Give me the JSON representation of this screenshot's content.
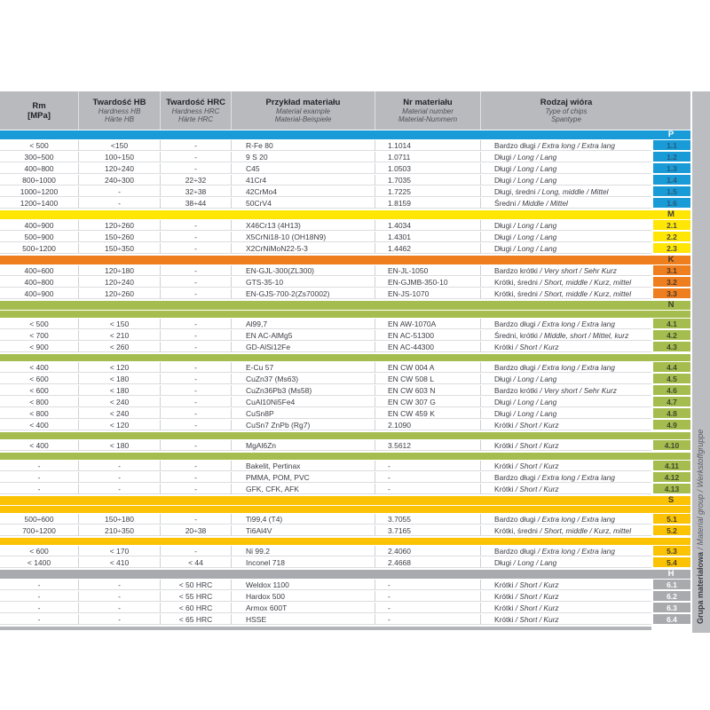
{
  "sidebar": {
    "bold": "Grupa materiałowa",
    "italic": " / Material group / Werkstoffgruppe"
  },
  "table": {
    "header_columns": [
      {
        "lines": [
          "Rm",
          "[MPa]"
        ]
      },
      {
        "lines": [
          "Twardość HB",
          "Hardness HB",
          "Härte HB"
        ]
      },
      {
        "lines": [
          "Twardość HRC",
          "Hardness HRC",
          "Härte HRC"
        ]
      },
      {
        "lines": [
          "Przykład materiału",
          "Material example",
          "Material-Beispiele"
        ]
      },
      {
        "lines": [
          "Nr materiału",
          "Material number",
          "Material-Nummern"
        ]
      },
      {
        "lines": [
          "Rodzaj wióra",
          "Type of chips",
          "Spantype"
        ]
      }
    ],
    "groups": [
      {
        "letter": "P",
        "color": "#189bd7",
        "letter_color": "#ffffff",
        "index_text_color": "#2a5a75",
        "blocks": [
          {
            "rows": [
              [
                "< 500",
                "<150",
                "-",
                "R-Fe 80",
                "1.1014",
                "Bardzo długi",
                " / Extra long / Extra lang",
                "1.1"
              ],
              [
                "300÷500",
                "100÷150",
                "-",
                "9 S 20",
                "1.0711",
                "Długi",
                " / Long / Lang",
                "1.2"
              ],
              [
                "400÷800",
                "120÷240",
                "-",
                "C45",
                "1.0503",
                "Długi",
                " / Long / Lang",
                "1.3"
              ],
              [
                "800÷1000",
                "240÷300",
                "22÷32",
                "41Cr4",
                "1.7035",
                "Długi",
                " / Long / Lang",
                "1.4"
              ],
              [
                "1000÷1200",
                "-",
                "32÷38",
                "42CrMo4",
                "1.7225",
                "Długi, średni",
                " / Long, middle / Mittel",
                "1.5"
              ],
              [
                "1200÷1400",
                "-",
                "38÷44",
                "50CrV4",
                "1.8159",
                "Średni",
                " / Middle / Mittel",
                "1.6"
              ]
            ]
          }
        ]
      },
      {
        "letter": "M",
        "color": "#ffe605",
        "letter_color": "#3f3f38",
        "index_text_color": "#4b4b44",
        "blocks": [
          {
            "rows": [
              [
                "400÷900",
                "120÷260",
                "-",
                "X46Cr13 (4H13)",
                "1.4034",
                "Długi",
                " / Long / Lang",
                "2.1"
              ],
              [
                "500÷900",
                "150÷260",
                "-",
                "X5CrNi18-10 (OH18N9)",
                "1.4301",
                "Długi",
                " / Long / Lang",
                "2.2"
              ],
              [
                "500÷1200",
                "150÷350",
                "-",
                "X2CrNiMoN22-5-3",
                "1.4462",
                "Długi",
                " / Long / Lang",
                "2.3"
              ]
            ]
          }
        ]
      },
      {
        "letter": "K",
        "color": "#ee7e1e",
        "letter_color": "#3f3428",
        "index_text_color": "#47382a",
        "blocks": [
          {
            "rows": [
              [
                "400÷600",
                "120÷180",
                "-",
                "EN-GJL-300(ZL300)",
                "EN-JL-1050",
                "Bardzo krótki",
                " / Very short / Sehr Kurz",
                "3.1"
              ],
              [
                "400÷800",
                "120÷240",
                "-",
                "GTS-35-10",
                "EN-GJMB-350-10",
                "Krótki, średni",
                " / Short, middle / Kurz, mittel",
                "3.2"
              ],
              [
                "400÷900",
                "120÷260",
                "-",
                "EN-GJS-700-2(Zs70002)",
                "EN-JS-1070",
                "Krótki, średni",
                " / Short, middle / Kurz, mittel",
                "3.3"
              ]
            ]
          }
        ]
      },
      {
        "letter": "N",
        "color": "#a5bd4f",
        "letter_color": "#3c4228",
        "index_text_color": "#43492c",
        "blocks": [
          {
            "rows": [
              [
                "< 500",
                "< 150",
                "-",
                "Al99,7",
                "EN AW-1070A",
                "Bardzo długi",
                " / Extra long / Extra lang",
                "4.1"
              ],
              [
                "< 700",
                "< 210",
                "-",
                "EN AC-AlMg5",
                "EN AC-51300",
                "Średni, krótki",
                " / Middle, short / Mittel, kurz",
                "4.2"
              ],
              [
                "< 900",
                "< 260",
                "-",
                "GD-AlSi12Fe",
                "EN AC-44300",
                "Krótki",
                " / Short / Kurz",
                "4.3"
              ]
            ]
          },
          {
            "rows": [
              [
                "< 400",
                "< 120",
                "-",
                "E-Cu 57",
                "EN CW 004 A",
                "Bardzo długi",
                " / Extra long / Extra lang",
                "4.4"
              ],
              [
                "< 600",
                "< 180",
                "-",
                "CuZn37 (Ms63)",
                "EN CW 508 L",
                "Długi",
                " / Long / Lang",
                "4.5"
              ],
              [
                "< 600",
                "< 180",
                "-",
                "CuZn36Pb3 (Ms58)",
                "EN CW 603 N",
                "Bardzo krótki",
                " / Very short / Sehr Kurz",
                "4.6"
              ],
              [
                "< 800",
                "< 240",
                "-",
                "CuAl10Ni5Fe4",
                "EN CW 307 G",
                "Długi",
                " / Long / Lang",
                "4.7"
              ],
              [
                "< 800",
                "< 240",
                "-",
                "CuSn8P",
                "EN CW 459 K",
                "Długi",
                " / Long / Lang",
                "4.8"
              ],
              [
                "< 400",
                "< 120",
                "-",
                "CuSn7 ZnPb (Rg7)",
                "2.1090",
                "Krótki",
                " / Short / Kurz",
                "4.9"
              ]
            ]
          },
          {
            "rows": [
              [
                "< 400",
                "< 180",
                "-",
                "MgAl6Zn",
                "3.5612",
                "Krótki",
                " / Short / Kurz",
                "4.10"
              ]
            ]
          },
          {
            "rows": [
              [
                "-",
                "-",
                "-",
                "Bakelit, Pertinax",
                "-",
                "Krótki",
                " / Short / Kurz",
                "4.11"
              ],
              [
                "-",
                "-",
                "-",
                "PMMA, POM, PVC",
                "-",
                "Bardzo długi",
                " / Extra long / Extra lang",
                "4.12"
              ],
              [
                "-",
                "-",
                "-",
                "GFK, CFK, AFK",
                "-",
                "Krótki",
                " / Short / Kurz",
                "4.13"
              ]
            ]
          }
        ]
      },
      {
        "letter": "S",
        "color": "#fbc303",
        "letter_color": "#3f3a28",
        "index_text_color": "#47402a",
        "blocks": [
          {
            "rows": [
              [
                "500÷600",
                "150÷180",
                "-",
                "Ti99,4 (T4)",
                "3.7055",
                "Bardzo długi",
                " / Extra long / Extra lang",
                "5.1"
              ],
              [
                "700÷1200",
                "210÷350",
                "20÷38",
                "Ti6Al4V",
                "3.7165",
                "Krótki, średni",
                " / Short, middle / Kurz, mittel",
                "5.2"
              ]
            ]
          },
          {
            "rows": [
              [
                "< 600",
                "< 170",
                "-",
                "Ni 99.2",
                "2.4060",
                "Bardzo długi",
                " / Extra long / Extra lang",
                "5.3"
              ],
              [
                "< 1400",
                "< 410",
                "< 44",
                "Inconel 718",
                "2.4668",
                "Długi",
                " / Long / Lang",
                "5.4"
              ]
            ]
          }
        ]
      },
      {
        "letter": "H",
        "color": "#a9aaae",
        "letter_color": "#ffffff",
        "index_text_color": "#ffffff",
        "blocks": [
          {
            "rows": [
              [
                "-",
                "-",
                "< 50 HRC",
                "Weldox 1100",
                "-",
                "Krótki",
                " / Short / Kurz",
                "6.1"
              ],
              [
                "-",
                "-",
                "< 55 HRC",
                "Hardox 500",
                "-",
                "Krótki",
                " / Short / Kurz",
                "6.2"
              ],
              [
                "-",
                "-",
                "< 60 HRC",
                "Armox 600T",
                "-",
                "Krótki",
                " / Short / Kurz",
                "6.3"
              ],
              [
                "-",
                "-",
                "< 65 HRC",
                "HSSE",
                "-",
                "Krótki",
                " / Short / Kurz",
                "6.4"
              ]
            ]
          }
        ]
      }
    ]
  }
}
